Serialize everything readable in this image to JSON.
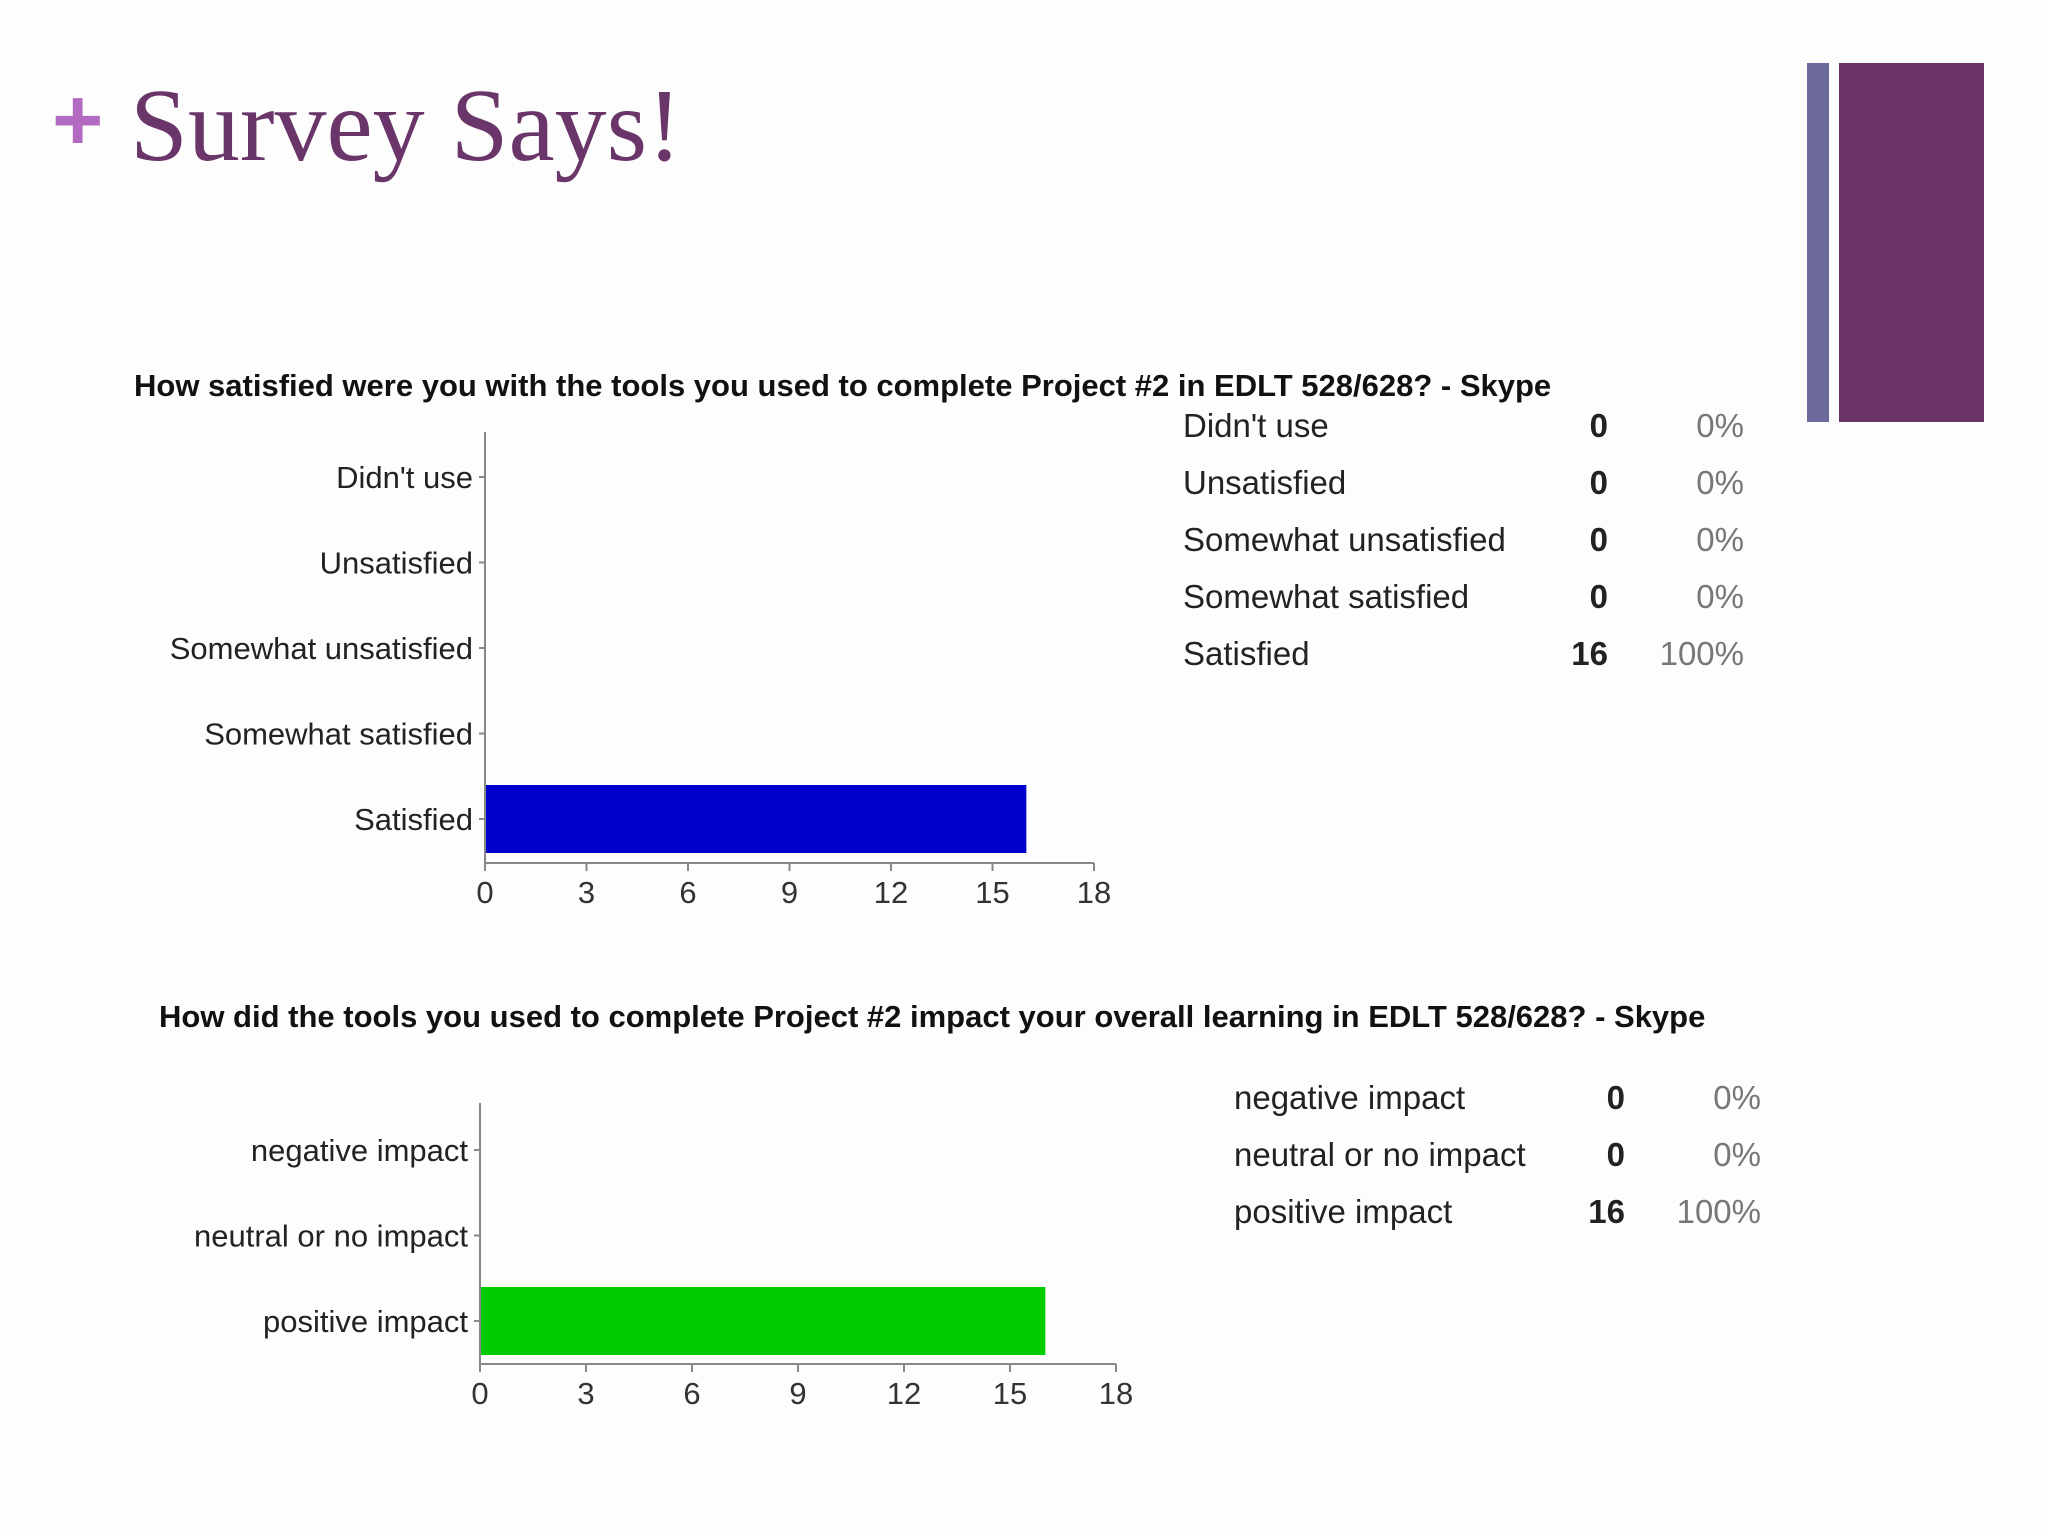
{
  "slide": {
    "plus": "+",
    "title": "Survey Says!",
    "colors": {
      "plus": "#b26bc0",
      "title": "#6a3568",
      "stripe_narrow": "#6c6a9a",
      "stripe_wide": "#6a3466"
    }
  },
  "chart_data": [
    {
      "type": "bar",
      "orientation": "horizontal",
      "title": "How satisfied were you with the tools you used to complete Project #2 in EDLT 528/628? - Skype",
      "categories": [
        "Didn't use",
        "Unsatisfied",
        "Somewhat unsatisfied",
        "Somewhat satisfied",
        "Satisfied"
      ],
      "values": [
        0,
        0,
        0,
        0,
        16
      ],
      "percents": [
        "0%",
        "0%",
        "0%",
        "0%",
        "100%"
      ],
      "xlim": [
        0,
        18
      ],
      "xticks": [
        "0",
        "3",
        "6",
        "9",
        "12",
        "15",
        "18"
      ],
      "bar_color": "#0000cc",
      "grid": false
    },
    {
      "type": "bar",
      "orientation": "horizontal",
      "title": "How did the tools you used to complete Project #2 impact your overall learning in EDLT 528/628? - Skype",
      "categories": [
        "negative impact",
        "neutral or no impact",
        "positive impact"
      ],
      "values": [
        0,
        0,
        16
      ],
      "percents": [
        "0%",
        "0%",
        "100%"
      ],
      "xlim": [
        0,
        18
      ],
      "xticks": [
        "0",
        "3",
        "6",
        "9",
        "12",
        "15",
        "18"
      ],
      "bar_color": "#00cc00",
      "grid": false
    }
  ]
}
